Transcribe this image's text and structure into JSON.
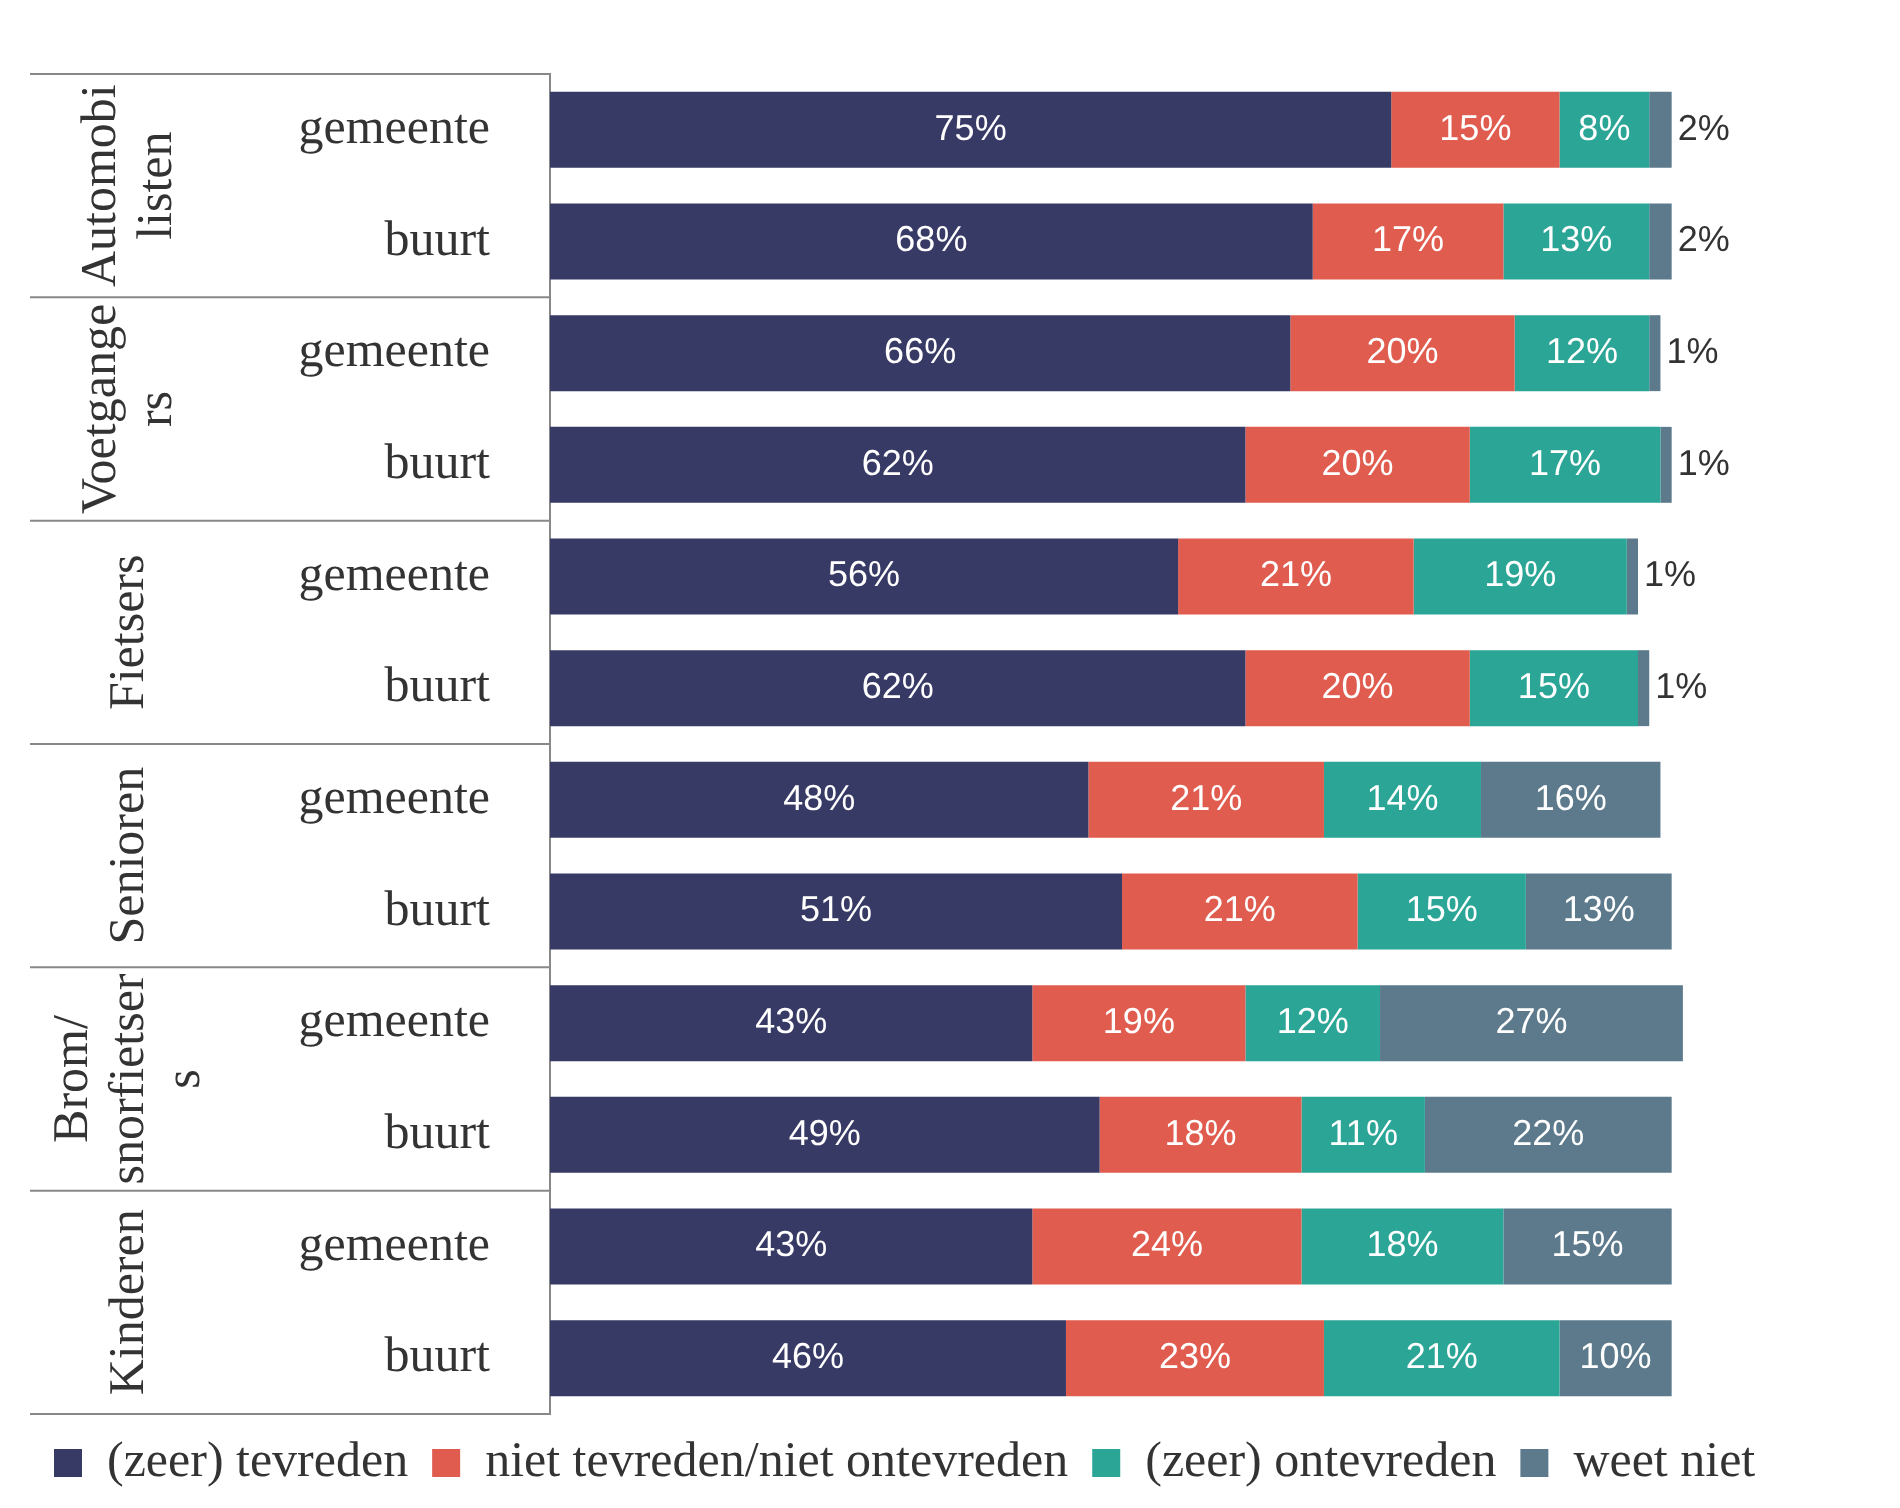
{
  "chart_data": {
    "type": "bar",
    "orientation": "horizontal",
    "stacked": true,
    "legend": "bottom",
    "categories": [
      "gemeente",
      "buurt",
      "gemeente",
      "buurt",
      "gemeente",
      "buurt",
      "gemeente",
      "buurt",
      "gemeente",
      "buurt",
      "gemeente",
      "buurt"
    ],
    "annotations": [
      "Automobilisten",
      "Voetgangers",
      "Fietsers",
      "Senioren",
      "Brom/ snorfietsers",
      "Kinderen"
    ],
    "series": [
      {
        "name": "(zeer) tevreden",
        "color": "#383a66",
        "values": [
          75,
          68,
          66,
          62,
          56,
          62,
          48,
          51,
          43,
          49,
          43,
          46
        ],
        "value_labels": [
          "75%",
          "68%",
          "66%",
          "62%",
          "56%",
          "62%",
          "48%",
          "51%",
          "43%",
          "49%",
          "43%",
          "46%"
        ]
      },
      {
        "name": "niet tevreden/niet ontevreden",
        "color": "#e05c4f",
        "values": [
          15,
          17,
          20,
          20,
          21,
          20,
          21,
          21,
          19,
          18,
          24,
          23
        ],
        "value_labels": [
          "15%",
          "17%",
          "20%",
          "20%",
          "21%",
          "20%",
          "21%",
          "21%",
          "19%",
          "18%",
          "24%",
          "23%"
        ]
      },
      {
        "name": "(zeer) ontevreden",
        "color": "#2aa596",
        "values": [
          8,
          13,
          12,
          17,
          19,
          15,
          14,
          15,
          12,
          11,
          18,
          21
        ],
        "value_labels": [
          "8%",
          "13%",
          "12%",
          "17%",
          "19%",
          "15%",
          "14%",
          "15%",
          "12%",
          "11%",
          "18%",
          "21%"
        ]
      },
      {
        "name": "weet niet",
        "color": "#5c7a8c",
        "values": [
          2,
          2,
          1,
          1,
          1,
          1,
          16,
          13,
          27,
          22,
          15,
          10
        ],
        "value_labels": [
          "2%",
          "2%",
          "1%",
          "1%",
          "1%",
          "1%",
          "16%",
          "13%",
          "27%",
          "22%",
          "15%",
          "10%"
        ]
      }
    ]
  }
}
